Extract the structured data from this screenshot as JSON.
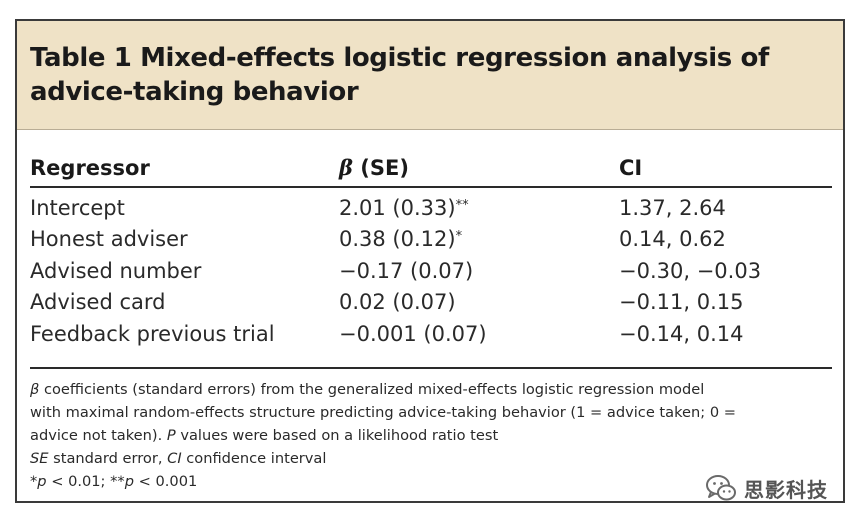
{
  "table": {
    "title": "Table 1 Mixed-effects logistic regression analysis of advice-taking behavior",
    "columns": {
      "regressor": "Regressor",
      "beta_symbol": "β",
      "beta_rest": " (SE)",
      "ci": "CI"
    },
    "rows": [
      {
        "regressor": "Intercept",
        "beta": "2.01 (0.33)",
        "sig": "**",
        "ci": "1.37, 2.64"
      },
      {
        "regressor": "Honest adviser",
        "beta": "0.38 (0.12)",
        "sig": "*",
        "ci": "0.14, 0.62"
      },
      {
        "regressor": "Advised number",
        "beta": "−0.17 (0.07)",
        "sig": "",
        "ci": "−0.30, −0.03"
      },
      {
        "regressor": "Advised card",
        "beta": "0.02 (0.07)",
        "sig": "",
        "ci": "−0.11, 0.15"
      },
      {
        "regressor": "Feedback previous trial",
        "beta": "−0.001 (0.07)",
        "sig": "",
        "ci": "−0.14, 0.14"
      }
    ],
    "footnotes": {
      "line1_beta": "β",
      "line1_rest": " coefficients (standard errors) from the generalized mixed-effects logistic regression model",
      "line2": "with maximal random-effects structure predicting advice-taking behavior (1 = advice taken; 0 =",
      "line3_pre": "advice not taken). ",
      "line3_p": "P",
      "line3_post": " values were based on a likelihood ratio test",
      "line4_se": "SE",
      "line4_mid": " standard error, ",
      "line4_ci": "CI",
      "line4_post": " confidence interval",
      "line5_star1": "*",
      "line5_p1": "p",
      "line5_mid": " < 0.01; **",
      "line5_p2": "p",
      "line5_end": " < 0.001"
    }
  },
  "watermark": {
    "icon": "wechat-icon",
    "text": "思影科技"
  },
  "colors": {
    "title_band": "#efe2c6",
    "frame": "#3a3a3a",
    "text": "#1a1a1a"
  }
}
